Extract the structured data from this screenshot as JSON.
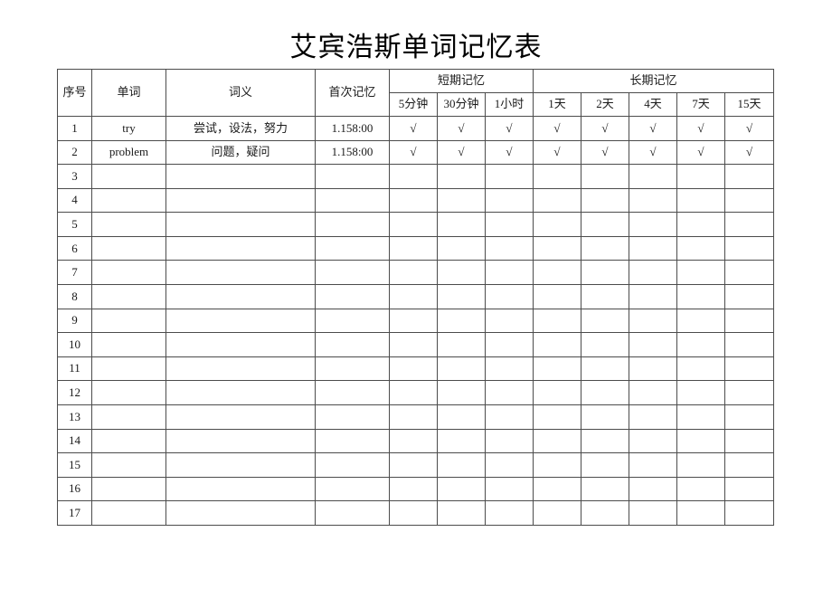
{
  "page": {
    "title": "艾宾浩斯单词记忆表"
  },
  "colors": {
    "border": "#4c4c4c",
    "text": "#000000",
    "background": "#ffffff"
  },
  "table": {
    "header": {
      "index_label": "序号",
      "word_label": "单词",
      "meaning_label": "词义",
      "first_memory_label": "首次记忆",
      "short_term_label": "短期记忆",
      "long_term_label": "长期记忆",
      "short_sub": [
        "5分钟",
        "30分钟",
        "1小时"
      ],
      "long_sub": [
        "1天",
        "2天",
        "4天",
        "7天",
        "15天"
      ]
    },
    "checkmark": "√",
    "rows": [
      [
        "1",
        "try",
        "尝试，设法，努力",
        "1.158:00",
        "√",
        "√",
        "√",
        "√",
        "√",
        "√",
        "√",
        "√"
      ],
      [
        "2",
        "problem",
        "问题，疑问",
        "1.158:00",
        "√",
        "√",
        "√",
        "√",
        "√",
        "√",
        "√",
        "√"
      ],
      [
        "3",
        "",
        "",
        "",
        "",
        "",
        "",
        "",
        "",
        "",
        "",
        ""
      ],
      [
        "4",
        "",
        "",
        "",
        "",
        "",
        "",
        "",
        "",
        "",
        "",
        ""
      ],
      [
        "5",
        "",
        "",
        "",
        "",
        "",
        "",
        "",
        "",
        "",
        "",
        ""
      ],
      [
        "6",
        "",
        "",
        "",
        "",
        "",
        "",
        "",
        "",
        "",
        "",
        ""
      ],
      [
        "7",
        "",
        "",
        "",
        "",
        "",
        "",
        "",
        "",
        "",
        "",
        ""
      ],
      [
        "8",
        "",
        "",
        "",
        "",
        "",
        "",
        "",
        "",
        "",
        "",
        ""
      ],
      [
        "9",
        "",
        "",
        "",
        "",
        "",
        "",
        "",
        "",
        "",
        "",
        ""
      ],
      [
        "10",
        "",
        "",
        "",
        "",
        "",
        "",
        "",
        "",
        "",
        "",
        ""
      ],
      [
        "11",
        "",
        "",
        "",
        "",
        "",
        "",
        "",
        "",
        "",
        "",
        ""
      ],
      [
        "12",
        "",
        "",
        "",
        "",
        "",
        "",
        "",
        "",
        "",
        "",
        ""
      ],
      [
        "13",
        "",
        "",
        "",
        "",
        "",
        "",
        "",
        "",
        "",
        "",
        ""
      ],
      [
        "14",
        "",
        "",
        "",
        "",
        "",
        "",
        "",
        "",
        "",
        "",
        ""
      ],
      [
        "15",
        "",
        "",
        "",
        "",
        "",
        "",
        "",
        "",
        "",
        "",
        ""
      ],
      [
        "16",
        "",
        "",
        "",
        "",
        "",
        "",
        "",
        "",
        "",
        "",
        ""
      ],
      [
        "17",
        "",
        "",
        "",
        "",
        "",
        "",
        "",
        "",
        "",
        "",
        ""
      ]
    ]
  }
}
